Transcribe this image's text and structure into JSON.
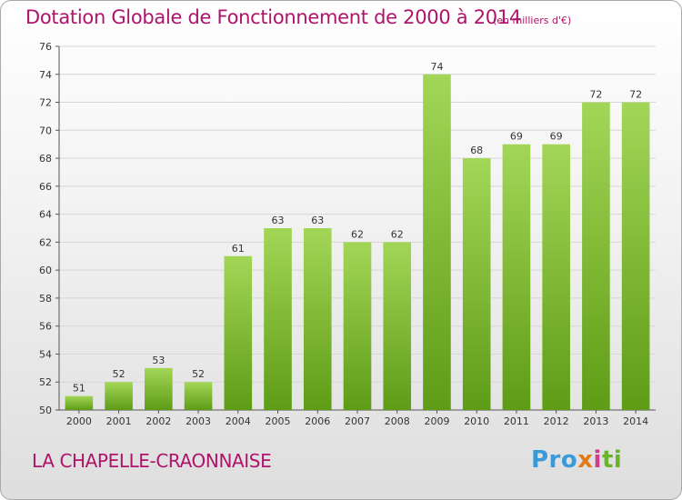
{
  "title": "Dotation Globale de Fonctionnement de 2000 à 2014",
  "subtitle": "(en milliers d'€)",
  "commune": "LA CHAPELLE-CRAONNAISE",
  "logo": {
    "p": "Pro",
    "x": "x",
    "i": "i",
    "ti": "ti"
  },
  "colors": {
    "title": "#b0136a",
    "bar_top": "#9ed24f",
    "bar_bottom": "#5c9a14",
    "grid": "#d9d9d9"
  },
  "chart_data": {
    "type": "bar",
    "categories": [
      "2000",
      "2001",
      "2002",
      "2003",
      "2004",
      "2005",
      "2006",
      "2007",
      "2008",
      "2009",
      "2010",
      "2011",
      "2012",
      "2013",
      "2014"
    ],
    "values": [
      51,
      52,
      53,
      52,
      61,
      63,
      63,
      62,
      62,
      74,
      68,
      69,
      69,
      72,
      72
    ],
    "ylim": [
      50,
      76
    ],
    "yticks": [
      50,
      52,
      54,
      56,
      58,
      60,
      62,
      64,
      66,
      68,
      70,
      72,
      74,
      76
    ],
    "grid": true,
    "title": "Dotation Globale de Fonctionnement de 2000 à 2014",
    "xlabel": "",
    "ylabel": ""
  }
}
